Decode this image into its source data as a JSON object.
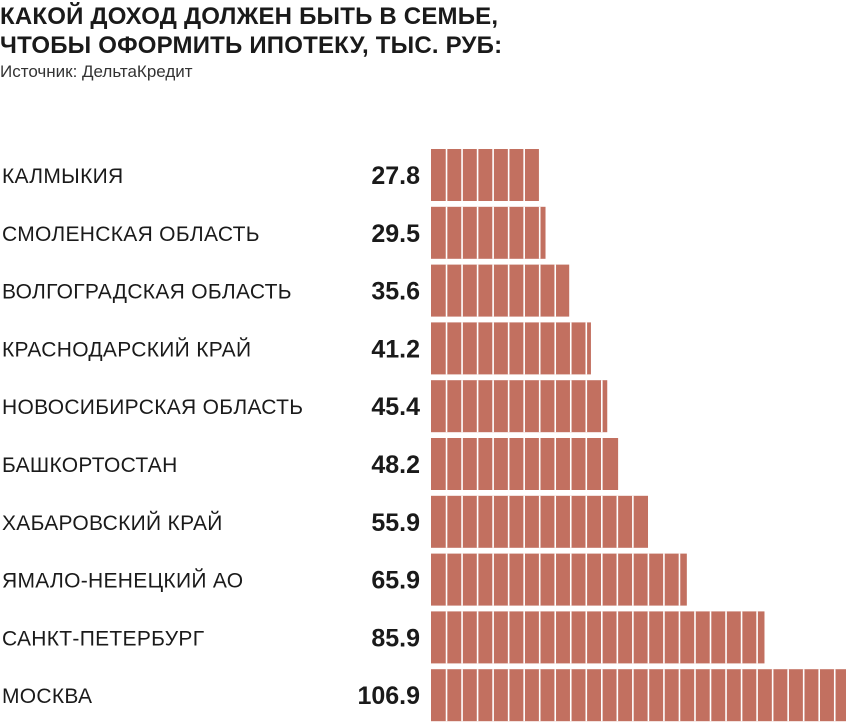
{
  "header": {
    "title_line1": "КАКОЙ ДОХОД ДОЛЖЕН БЫТЬ В СЕМЬЕ,",
    "title_line2": "ЧТОБЫ ОФОРМИТЬ ИПОТЕКУ, ТЫС. РУБ:",
    "source": "Источник: ДельтаКредит"
  },
  "chart_data": {
    "type": "bar",
    "orientation": "horizontal",
    "title": "КАКОЙ ДОХОД ДОЛЖЕН БЫТЬ В СЕМЬЕ, ЧТОБЫ ОФОРМИТЬ ИПОТЕКУ, ТЫС. РУБ:",
    "categories": [
      "КАЛМЫКИЯ",
      "СМОЛЕНСКАЯ ОБЛАСТЬ",
      "ВОЛГОГРАДСКАЯ ОБЛАСТЬ",
      "КРАСНОДАРСКИЙ КРАЙ",
      "НОВОСИБИРСКАЯ ОБЛАСТЬ",
      "БАШКОРТОСТАН",
      "ХАБАРОВСКИЙ КРАЙ",
      "ЯМАЛО-НЕНЕЦКИЙ АО",
      "САНКТ-ПЕТЕРБУРГ",
      "МОСКВА"
    ],
    "values": [
      27.8,
      29.5,
      35.6,
      41.2,
      45.4,
      48.2,
      55.9,
      65.9,
      85.9,
      106.9
    ],
    "xlim": [
      0,
      106.9
    ],
    "segment_unit": 4,
    "bar_color": "#c27060",
    "segment_line_color": "#ffffff",
    "grid": false,
    "legend": "none"
  }
}
